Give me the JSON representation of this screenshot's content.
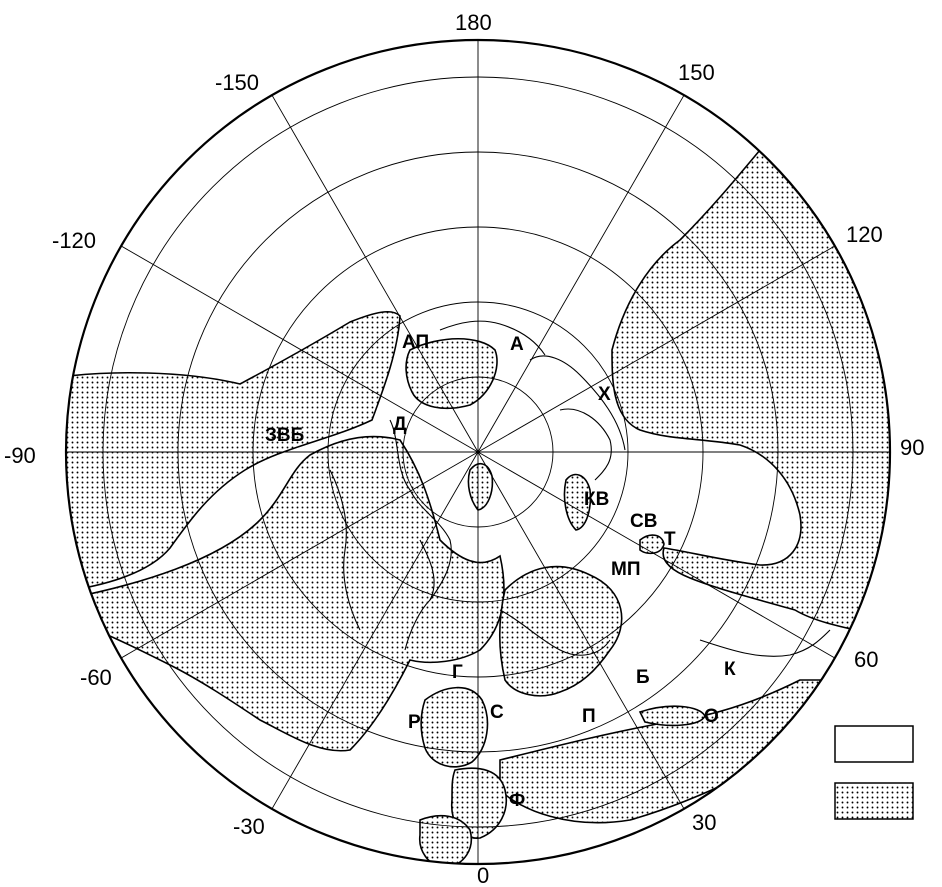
{
  "map": {
    "projection": "polar-stereographic",
    "center": "north-pole",
    "longitude_labels": [
      "180",
      "150",
      "-150",
      "120",
      "-120",
      "90",
      "-90",
      "60",
      "-60",
      "30",
      "-30",
      "0"
    ],
    "region_labels": [
      "АП",
      "А",
      "Х",
      "ЗВБ",
      "Д",
      "КВ",
      "СВ",
      "Т",
      "МП",
      "Г",
      "Р",
      "С",
      "П",
      "Б",
      "К",
      "О",
      "Ф"
    ]
  },
  "legend": {
    "items": [
      {
        "fill": "blank"
      },
      {
        "fill": "dotted"
      }
    ]
  },
  "colors": {
    "line": "#000000",
    "background": "#ffffff",
    "dots": "#000000"
  }
}
